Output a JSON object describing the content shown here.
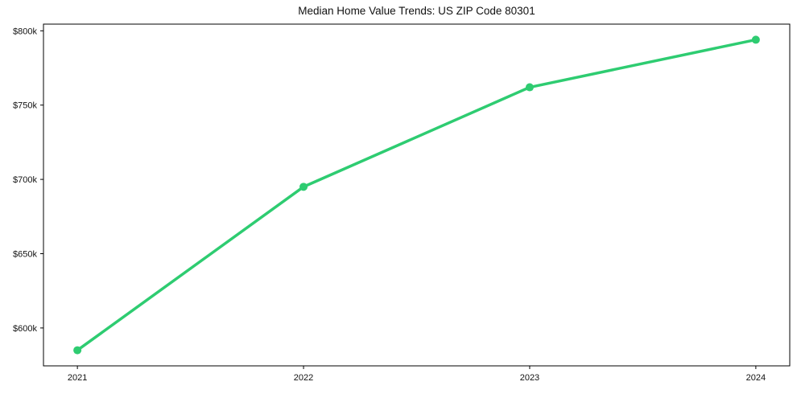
{
  "chart_data": {
    "type": "line",
    "title": "Median Home Value Trends: US ZIP Code 80301",
    "xlabel": "",
    "ylabel": "",
    "categories": [
      2021,
      2022,
      2023,
      2024
    ],
    "x_tick_labels": [
      "2021",
      "2022",
      "2023",
      "2024"
    ],
    "series": [
      {
        "name": "Median Home Value",
        "values": [
          585000,
          695000,
          762000,
          794000
        ],
        "color": "#2ecc71",
        "marker": "circle"
      }
    ],
    "y_ticks": [
      600000,
      650000,
      700000,
      750000,
      800000
    ],
    "y_tick_labels": [
      "$600k",
      "$650k",
      "$700k",
      "$750k",
      "$800k"
    ],
    "ylim": [
      574500,
      804500
    ],
    "xlim": [
      2020.85,
      2024.15
    ],
    "grid": false,
    "legend_position": "none",
    "background_color": "#ffffff",
    "axis_color": "#000000",
    "line_width": 3.5,
    "marker_radius": 5
  }
}
